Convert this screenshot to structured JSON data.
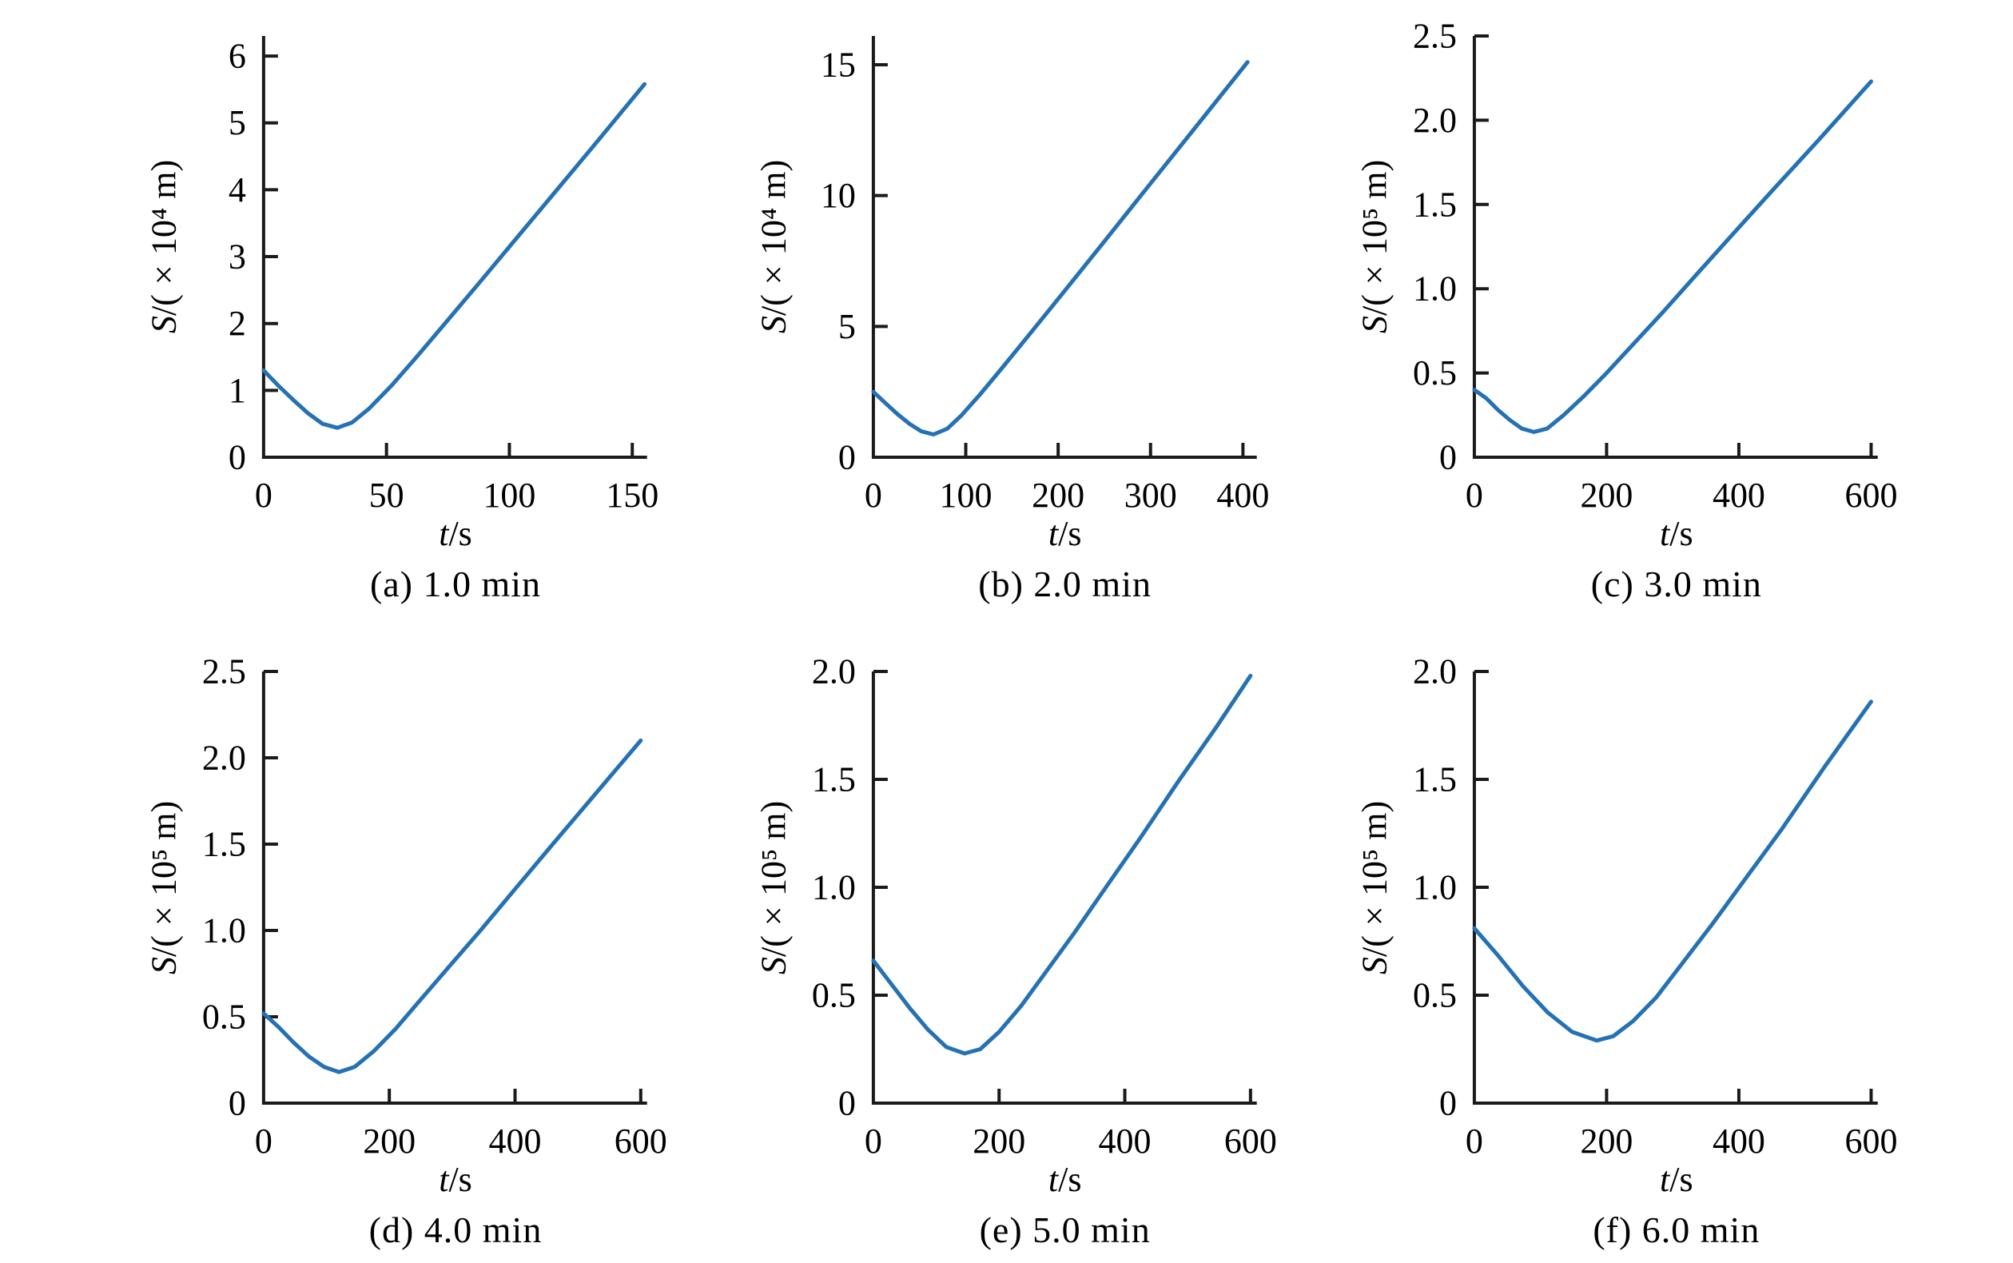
{
  "figure": {
    "curve_color": "#2471b3",
    "axis_color": "#1a1a1a",
    "text_color": "#000000",
    "background": "#ffffff"
  },
  "chart_data": [
    {
      "id": "a",
      "type": "line",
      "caption": "(a) 1.0 min",
      "xlabel_sym": "t",
      "xlabel_rest": "/s",
      "ylabel_sym": "S",
      "ylabel_rest": "/(×10⁴ m)",
      "xlim": [
        0,
        156
      ],
      "ylim": [
        0,
        6.3
      ],
      "xticks": {
        "values": [
          0,
          50,
          100,
          150
        ],
        "labels": [
          "0",
          "50",
          "100",
          "150"
        ]
      },
      "yticks": {
        "values": [
          0,
          1,
          2,
          3,
          4,
          5,
          6
        ],
        "labels": [
          "0",
          "1",
          "2",
          "3",
          "4",
          "5",
          "6"
        ]
      },
      "grid": false,
      "legend": false,
      "points": [
        [
          0,
          1.3
        ],
        [
          6,
          1.07
        ],
        [
          12,
          0.86
        ],
        [
          18,
          0.66
        ],
        [
          24,
          0.5
        ],
        [
          30,
          0.44
        ],
        [
          36,
          0.52
        ],
        [
          43,
          0.73
        ],
        [
          52,
          1.07
        ],
        [
          62,
          1.49
        ],
        [
          74,
          2.01
        ],
        [
          88,
          2.62
        ],
        [
          103,
          3.28
        ],
        [
          118,
          3.94
        ],
        [
          133,
          4.6
        ],
        [
          144,
          5.09
        ],
        [
          155,
          5.58
        ]
      ]
    },
    {
      "id": "b",
      "type": "line",
      "caption": "(b) 2.0 min",
      "xlabel_sym": "t",
      "xlabel_rest": "/s",
      "ylabel_sym": "S",
      "ylabel_rest": "/(×10⁴ m)",
      "xlim": [
        0,
        415
      ],
      "ylim": [
        0,
        16.1
      ],
      "xticks": {
        "values": [
          0,
          100,
          200,
          300,
          400
        ],
        "labels": [
          "0",
          "100",
          "200",
          "300",
          "400"
        ]
      },
      "yticks": {
        "values": [
          0,
          5,
          10,
          15
        ],
        "labels": [
          "0",
          "5",
          "10",
          "15"
        ]
      },
      "grid": false,
      "legend": false,
      "points": [
        [
          0,
          2.5
        ],
        [
          13,
          2.07
        ],
        [
          26,
          1.65
        ],
        [
          39,
          1.28
        ],
        [
          52,
          0.99
        ],
        [
          65,
          0.87
        ],
        [
          80,
          1.09
        ],
        [
          95,
          1.59
        ],
        [
          115,
          2.38
        ],
        [
          140,
          3.44
        ],
        [
          170,
          4.74
        ],
        [
          205,
          6.27
        ],
        [
          245,
          8.03
        ],
        [
          290,
          10.02
        ],
        [
          340,
          12.23
        ],
        [
          405,
          15.1
        ]
      ]
    },
    {
      "id": "c",
      "type": "line",
      "caption": "(c) 3.0 min",
      "xlabel_sym": "t",
      "xlabel_rest": "/s",
      "ylabel_sym": "S",
      "ylabel_rest": "/(×10⁵ m)",
      "xlim": [
        0,
        610
      ],
      "ylim": [
        0,
        2.5
      ],
      "xticks": {
        "values": [
          0,
          200,
          400,
          600
        ],
        "labels": [
          "0",
          "200",
          "400",
          "600"
        ]
      },
      "yticks": {
        "values": [
          0,
          0.5,
          1.0,
          1.5,
          2.0,
          2.5
        ],
        "labels": [
          "0",
          "0.5",
          "1.0",
          "1.5",
          "2.0",
          "2.5"
        ]
      },
      "grid": false,
      "legend": false,
      "points": [
        [
          0,
          0.4
        ],
        [
          18,
          0.35
        ],
        [
          36,
          0.28
        ],
        [
          54,
          0.22
        ],
        [
          72,
          0.17
        ],
        [
          90,
          0.15
        ],
        [
          110,
          0.17
        ],
        [
          135,
          0.25
        ],
        [
          165,
          0.36
        ],
        [
          200,
          0.5
        ],
        [
          240,
          0.67
        ],
        [
          285,
          0.86
        ],
        [
          335,
          1.08
        ],
        [
          390,
          1.32
        ],
        [
          450,
          1.58
        ],
        [
          520,
          1.88
        ],
        [
          600,
          2.23
        ]
      ]
    },
    {
      "id": "d",
      "type": "line",
      "caption": "(d) 4.0 min",
      "xlabel_sym": "t",
      "xlabel_rest": "/s",
      "ylabel_sym": "S",
      "ylabel_rest": "/(×10⁵ m)",
      "xlim": [
        0,
        610
      ],
      "ylim": [
        0,
        2.5
      ],
      "xticks": {
        "values": [
          0,
          200,
          400,
          600
        ],
        "labels": [
          "0",
          "200",
          "400",
          "600"
        ]
      },
      "yticks": {
        "values": [
          0,
          0.5,
          1.0,
          1.5,
          2.0,
          2.5
        ],
        "labels": [
          "0",
          "0.5",
          "1.0",
          "1.5",
          "2.0",
          "2.5"
        ]
      },
      "grid": false,
      "legend": false,
      "points": [
        [
          0,
          0.52
        ],
        [
          24,
          0.44
        ],
        [
          48,
          0.35
        ],
        [
          72,
          0.27
        ],
        [
          96,
          0.21
        ],
        [
          120,
          0.18
        ],
        [
          145,
          0.21
        ],
        [
          175,
          0.3
        ],
        [
          210,
          0.43
        ],
        [
          250,
          0.6
        ],
        [
          295,
          0.79
        ],
        [
          345,
          1.0
        ],
        [
          400,
          1.24
        ],
        [
          460,
          1.5
        ],
        [
          530,
          1.8
        ],
        [
          600,
          2.1
        ]
      ]
    },
    {
      "id": "e",
      "type": "line",
      "caption": "(e) 5.0 min",
      "xlabel_sym": "t",
      "xlabel_rest": "/s",
      "ylabel_sym": "S",
      "ylabel_rest": "/(×10⁵ m)",
      "xlim": [
        0,
        610
      ],
      "ylim": [
        0,
        2.0
      ],
      "xticks": {
        "values": [
          0,
          200,
          400,
          600
        ],
        "labels": [
          "0",
          "200",
          "400",
          "600"
        ]
      },
      "yticks": {
        "values": [
          0,
          0.5,
          1.0,
          1.5,
          2.0
        ],
        "labels": [
          "0",
          "0.5",
          "1.0",
          "1.5",
          "2.0"
        ]
      },
      "grid": false,
      "legend": false,
      "points": [
        [
          0,
          0.66
        ],
        [
          29,
          0.55
        ],
        [
          58,
          0.44
        ],
        [
          87,
          0.34
        ],
        [
          116,
          0.26
        ],
        [
          145,
          0.23
        ],
        [
          170,
          0.25
        ],
        [
          200,
          0.33
        ],
        [
          235,
          0.45
        ],
        [
          275,
          0.61
        ],
        [
          320,
          0.79
        ],
        [
          370,
          1.0
        ],
        [
          425,
          1.23
        ],
        [
          485,
          1.49
        ],
        [
          545,
          1.74
        ],
        [
          600,
          1.98
        ]
      ]
    },
    {
      "id": "f",
      "type": "line",
      "caption": "(f) 6.0 min",
      "xlabel_sym": "t",
      "xlabel_rest": "/s",
      "ylabel_sym": "S",
      "ylabel_rest": "/(×10⁵ m)",
      "xlim": [
        0,
        610
      ],
      "ylim": [
        0,
        2.0
      ],
      "xticks": {
        "values": [
          0,
          200,
          400,
          600
        ],
        "labels": [
          "0",
          "200",
          "400",
          "600"
        ]
      },
      "yticks": {
        "values": [
          0,
          0.5,
          1.0,
          1.5,
          2.0
        ],
        "labels": [
          "0",
          "0.5",
          "1.0",
          "1.5",
          "2.0"
        ]
      },
      "grid": false,
      "legend": false,
      "points": [
        [
          0,
          0.81
        ],
        [
          37,
          0.68
        ],
        [
          74,
          0.54
        ],
        [
          111,
          0.42
        ],
        [
          148,
          0.33
        ],
        [
          185,
          0.29
        ],
        [
          210,
          0.31
        ],
        [
          240,
          0.38
        ],
        [
          275,
          0.49
        ],
        [
          315,
          0.65
        ],
        [
          360,
          0.83
        ],
        [
          410,
          1.04
        ],
        [
          465,
          1.27
        ],
        [
          530,
          1.56
        ],
        [
          600,
          1.86
        ]
      ]
    }
  ]
}
